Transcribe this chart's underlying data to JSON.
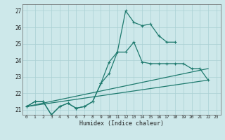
{
  "xlabel": "Humidex (Indice chaleur)",
  "background_color": "#cde8ea",
  "grid_color": "#aad0d4",
  "line_color": "#1e7a6e",
  "xlim": [
    -0.5,
    23.5
  ],
  "ylim": [
    20.7,
    27.4
  ],
  "yticks": [
    21,
    22,
    23,
    24,
    25,
    26,
    27
  ],
  "xticks": [
    0,
    1,
    2,
    3,
    4,
    5,
    6,
    7,
    8,
    9,
    10,
    11,
    12,
    13,
    14,
    15,
    16,
    17,
    18,
    19,
    20,
    21,
    22,
    23
  ],
  "series1_x": [
    0,
    1,
    2,
    3,
    4,
    5,
    6,
    7,
    8,
    9,
    10,
    11,
    12,
    13,
    14,
    15,
    16,
    17,
    18
  ],
  "series1_y": [
    21.2,
    21.5,
    21.5,
    20.7,
    21.2,
    21.4,
    21.1,
    21.2,
    21.5,
    22.6,
    23.2,
    24.5,
    27.0,
    26.3,
    26.1,
    26.2,
    25.5,
    25.1,
    25.1
  ],
  "series2_x": [
    0,
    1,
    2,
    3,
    4,
    5,
    6,
    7,
    8,
    9,
    10,
    11,
    12,
    13,
    14,
    15,
    16,
    17,
    18,
    19,
    20,
    21,
    22
  ],
  "series2_y": [
    21.2,
    21.5,
    21.5,
    20.7,
    21.2,
    21.4,
    21.1,
    21.2,
    21.5,
    22.6,
    23.9,
    24.5,
    24.5,
    25.1,
    23.9,
    23.8,
    23.8,
    23.8,
    23.8,
    23.8,
    23.5,
    23.5,
    22.8
  ],
  "series3_x": [
    0,
    22
  ],
  "series3_y": [
    21.2,
    22.8
  ],
  "series4_x": [
    0,
    22
  ],
  "series4_y": [
    21.2,
    23.5
  ]
}
